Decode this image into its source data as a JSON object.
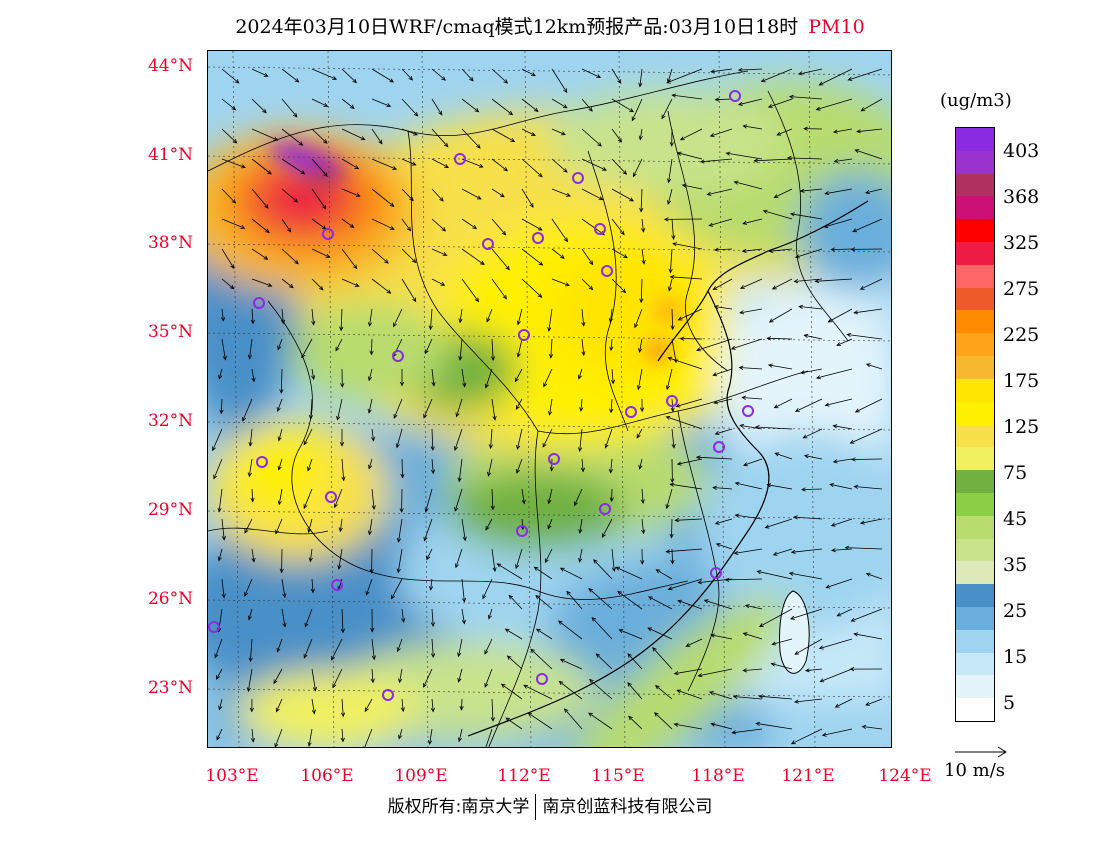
{
  "title": {
    "main": "2024年03月10日WRF/cmaq模式12km预报产品:03月10日18时",
    "pollutant": "PM10"
  },
  "map": {
    "lat_labels": [
      "44°N",
      "41°N",
      "38°N",
      "35°N",
      "32°N",
      "29°N",
      "26°N",
      "23°N"
    ],
    "lon_labels": [
      "103°E",
      "106°E",
      "109°E",
      "112°E",
      "115°E",
      "118°E",
      "121°E",
      "124°E"
    ],
    "city_marker_color": "#8b2be2"
  },
  "legend": {
    "unit": "(ug/m3)",
    "colors": [
      "#8a2be2",
      "#9a32cd",
      "#b03060",
      "#cd1076",
      "#ff0000",
      "#ee1c45",
      "#ff6666",
      "#ee5a2a",
      "#ff8c00",
      "#ffa31a",
      "#f5b82e",
      "#ffe500",
      "#fff000",
      "#f7e04a",
      "#f0f060",
      "#70b040",
      "#8ccf46",
      "#b8dc6e",
      "#c8e38c",
      "#dde9b8",
      "#4a90c8",
      "#6aaedb",
      "#9fd4f0",
      "#c6e8f8",
      "#e3f4fb",
      "#ffffff"
    ],
    "labels": [
      "403",
      "368",
      "325",
      "275",
      "225",
      "175",
      "125",
      "75",
      "45",
      "35",
      "25",
      "15",
      "5"
    ],
    "wind_key": "10 m/s"
  },
  "footer": {
    "copyright_left": "版权所有:南京大学",
    "copyright_right": "南京创蓝科技有限公司"
  }
}
